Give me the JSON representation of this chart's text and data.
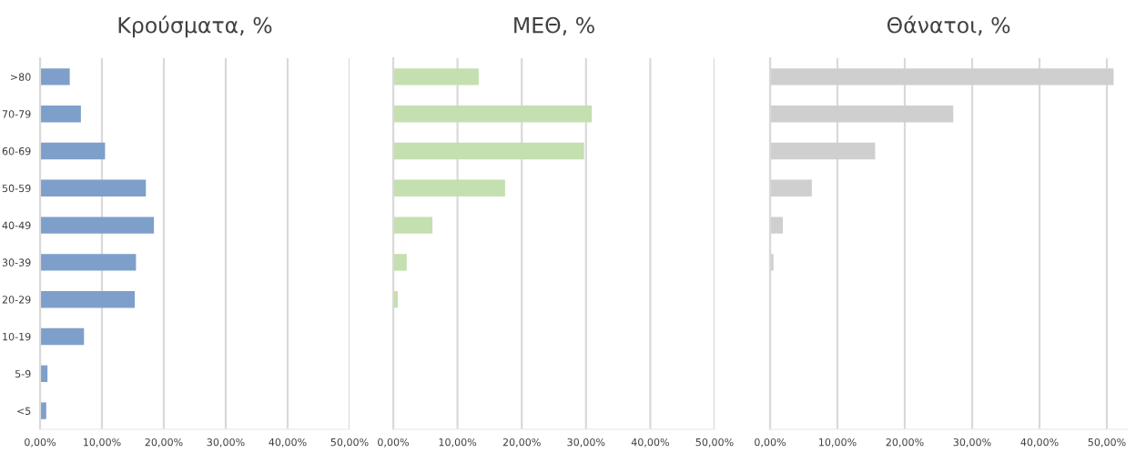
{
  "chart_data": [
    {
      "type": "bar",
      "orientation": "horizontal",
      "title": "Κρούσματα, %",
      "categories": [
        ">80",
        "70-79",
        "60-69",
        "50-59",
        "40-49",
        "30-39",
        "20-29",
        "10-19",
        "5-9",
        "<5"
      ],
      "values": [
        4.8,
        6.6,
        10.5,
        17.1,
        18.4,
        15.5,
        15.3,
        7.1,
        1.2,
        1.0
      ],
      "color": "#7f9fcb",
      "xlim": [
        0,
        50
      ],
      "xticks": [
        {
          "value": 0,
          "label": "0,00%"
        },
        {
          "value": 10,
          "label": "10,00%"
        },
        {
          "value": 20,
          "label": "20,00%"
        },
        {
          "value": 30,
          "label": "30,00%"
        },
        {
          "value": 40,
          "label": "40,00%"
        },
        {
          "value": 50,
          "label": "50,00%"
        }
      ],
      "grid": "x"
    },
    {
      "type": "bar",
      "orientation": "horizontal",
      "title": "ΜΕΘ, %",
      "categories": [
        null,
        null,
        null,
        null,
        null,
        null,
        null,
        null,
        null,
        null
      ],
      "values": [
        13.3,
        30.9,
        29.7,
        17.4,
        6.1,
        2.1,
        0.7,
        null,
        0,
        0
      ],
      "color": "#c4dfb0",
      "xlim": [
        0,
        50
      ],
      "xticks": [
        {
          "value": 0,
          "label": "0,00%"
        },
        {
          "value": 10,
          "label": "10,00%"
        },
        {
          "value": 20,
          "label": "20,00%"
        },
        {
          "value": 30,
          "label": "30,00%"
        },
        {
          "value": 40,
          "label": "40,00%"
        },
        {
          "value": 50,
          "label": "50,00%"
        }
      ],
      "grid": "x",
      "tick_labels": "x"
    },
    {
      "type": "bar",
      "orientation": "horizontal",
      "title": "Θάνατοι, %",
      "categories": [
        null,
        null,
        null,
        null,
        null,
        null,
        null,
        null,
        null,
        null
      ],
      "values": [
        51,
        27.2,
        15.6,
        6.2,
        1.9,
        0.5,
        0,
        0,
        0,
        0
      ],
      "color": "#cfcfcf",
      "xlim": [
        0,
        53
      ],
      "xticks": [
        {
          "value": 0,
          "label": "0,00%"
        },
        {
          "value": 10,
          "label": "10,00%"
        },
        {
          "value": 20,
          "label": "20,00%"
        },
        {
          "value": 30,
          "label": "30,00%"
        },
        {
          "value": 40,
          "label": "40,00%"
        },
        {
          "value": 50,
          "label": "50,00%"
        }
      ],
      "grid": "x",
      "tick_labels": "x"
    }
  ]
}
